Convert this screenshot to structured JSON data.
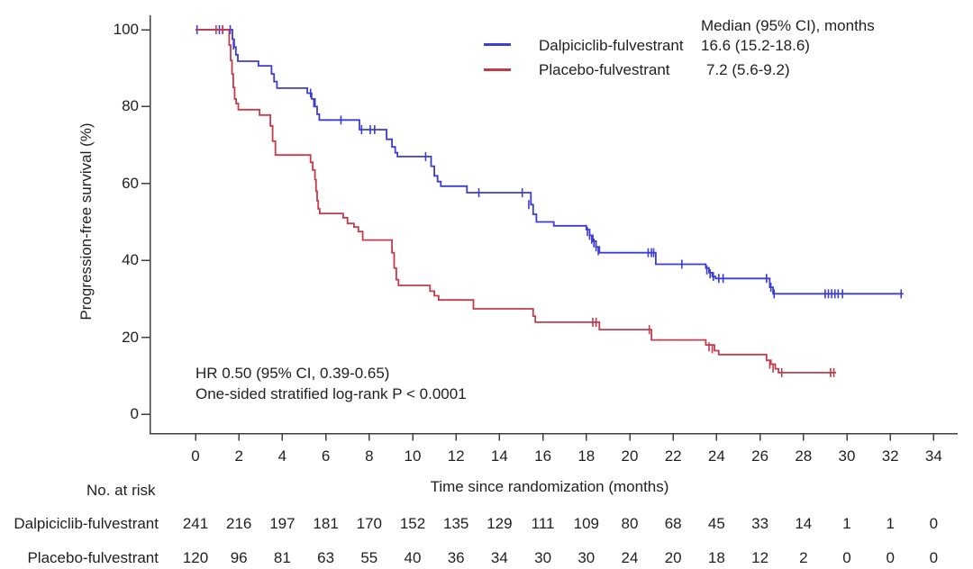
{
  "colors": {
    "background": "#ffffff",
    "axis": "#3f3f3f",
    "text": "#1f1f1f",
    "dalpiciclib": "#3c3cd2",
    "placebo": "#c43b4c"
  },
  "chart_data": {
    "type": "line",
    "subtype": "kaplan-meier-step-curves",
    "title": "",
    "xlabel": "Time since randomization (months)",
    "ylabel": "Progression-free survival (%)",
    "xlim": [
      0,
      34
    ],
    "ylim": [
      0,
      100
    ],
    "x_ticks": [
      0,
      2,
      4,
      6,
      8,
      10,
      12,
      14,
      16,
      18,
      20,
      22,
      24,
      26,
      28,
      30,
      32,
      34
    ],
    "y_ticks": [
      0,
      20,
      40,
      60,
      80,
      100
    ],
    "grid": false,
    "legend": {
      "position": "top-right",
      "header": "Median (95% CI), months",
      "entries": [
        {
          "label": "Dalpiciclib-fulvestrant",
          "median": "16.6 (15.2-18.6)",
          "color": "#3c3cd2"
        },
        {
          "label": "Placebo-fulvestrant",
          "median": "7.2 (5.6-9.2)",
          "color": "#c43b4c"
        }
      ]
    },
    "annotation": {
      "line1": "HR 0.50 (95% CI, 0.39-0.65)",
      "line2": "One-sided stratified log-rank P < 0.0001"
    },
    "series": [
      {
        "name": "Dalpiciclib-fulvestrant",
        "color": "#3c3cd2",
        "end": 32.6,
        "steps": [
          [
            0,
            100
          ],
          [
            1.7,
            97.5
          ],
          [
            1.78,
            95.5
          ],
          [
            1.86,
            93.5
          ],
          [
            1.95,
            91.8
          ],
          [
            2.9,
            90.6
          ],
          [
            3.5,
            88.5
          ],
          [
            3.62,
            86.5
          ],
          [
            3.75,
            84.8
          ],
          [
            5.15,
            83.5
          ],
          [
            5.35,
            82
          ],
          [
            5.5,
            80
          ],
          [
            5.6,
            78
          ],
          [
            5.7,
            76.5
          ],
          [
            7.55,
            74
          ],
          [
            8.8,
            71.5
          ],
          [
            9.05,
            69.5
          ],
          [
            9.2,
            68
          ],
          [
            9.3,
            67
          ],
          [
            10.85,
            64.5
          ],
          [
            11.0,
            62
          ],
          [
            11.15,
            60.5
          ],
          [
            11.3,
            59.3
          ],
          [
            12.5,
            57.6
          ],
          [
            15.45,
            54.5
          ],
          [
            15.55,
            52
          ],
          [
            15.7,
            50
          ],
          [
            16.5,
            49
          ],
          [
            18.0,
            48
          ],
          [
            18.15,
            46.5
          ],
          [
            18.3,
            45
          ],
          [
            18.45,
            43.5
          ],
          [
            18.6,
            42
          ],
          [
            21.2,
            39
          ],
          [
            23.5,
            38
          ],
          [
            23.65,
            36.8
          ],
          [
            23.8,
            35.8
          ],
          [
            23.95,
            35.3
          ],
          [
            26.45,
            33
          ],
          [
            26.6,
            31.3
          ]
        ],
        "censors": [
          [
            0.07,
            100
          ],
          [
            1.1,
            100
          ],
          [
            1.25,
            100
          ],
          [
            1.6,
            100
          ],
          [
            1.75,
            96
          ],
          [
            5.3,
            83.5
          ],
          [
            5.45,
            81
          ],
          [
            6.7,
            76.5
          ],
          [
            7.65,
            74
          ],
          [
            8.05,
            74
          ],
          [
            8.25,
            74
          ],
          [
            10.6,
            67
          ],
          [
            13.05,
            57.6
          ],
          [
            15.05,
            57.6
          ],
          [
            15.35,
            54.5
          ],
          [
            18.05,
            47.5
          ],
          [
            18.15,
            46.5
          ],
          [
            18.25,
            45.5
          ],
          [
            18.35,
            44.5
          ],
          [
            18.45,
            43.5
          ],
          [
            18.55,
            42.5
          ],
          [
            20.85,
            42
          ],
          [
            21.0,
            42
          ],
          [
            21.1,
            42
          ],
          [
            22.4,
            39
          ],
          [
            23.55,
            37.5
          ],
          [
            23.7,
            36.5
          ],
          [
            23.85,
            35.8
          ],
          [
            24.1,
            35.3
          ],
          [
            24.3,
            35.3
          ],
          [
            26.3,
            35.3
          ],
          [
            26.5,
            33
          ],
          [
            26.65,
            31.3
          ],
          [
            29.0,
            31.3
          ],
          [
            29.15,
            31.3
          ],
          [
            29.3,
            31.3
          ],
          [
            29.45,
            31.3
          ],
          [
            29.6,
            31.3
          ],
          [
            29.8,
            31.3
          ],
          [
            32.5,
            31.3
          ]
        ]
      },
      {
        "name": "Placebo-fulvestrant",
        "color": "#c43b4c",
        "end": 29.5,
        "steps": [
          [
            0,
            100
          ],
          [
            1.55,
            96
          ],
          [
            1.62,
            92
          ],
          [
            1.68,
            88.5
          ],
          [
            1.74,
            85
          ],
          [
            1.8,
            82
          ],
          [
            1.87,
            80.8
          ],
          [
            1.97,
            79.2
          ],
          [
            2.95,
            77.8
          ],
          [
            3.45,
            75
          ],
          [
            3.55,
            71
          ],
          [
            3.68,
            67.4
          ],
          [
            5.3,
            65.5
          ],
          [
            5.4,
            63.5
          ],
          [
            5.5,
            61
          ],
          [
            5.55,
            58
          ],
          [
            5.6,
            55.5
          ],
          [
            5.65,
            53.4
          ],
          [
            5.72,
            52.2
          ],
          [
            6.8,
            51.1
          ],
          [
            7.0,
            49.6
          ],
          [
            7.3,
            48.7
          ],
          [
            7.5,
            47.5
          ],
          [
            7.7,
            45.3
          ],
          [
            9.05,
            42
          ],
          [
            9.15,
            38
          ],
          [
            9.25,
            35
          ],
          [
            9.35,
            33.5
          ],
          [
            10.8,
            32
          ],
          [
            11.0,
            30.8
          ],
          [
            11.2,
            29.7
          ],
          [
            12.8,
            27.4
          ],
          [
            15.55,
            25.5
          ],
          [
            15.65,
            23.9
          ],
          [
            18.6,
            22
          ],
          [
            21.0,
            19.3
          ],
          [
            23.5,
            18
          ],
          [
            23.9,
            16.5
          ],
          [
            24.1,
            15.5
          ],
          [
            26.3,
            14
          ],
          [
            26.5,
            13
          ],
          [
            26.7,
            11.8
          ],
          [
            26.85,
            10.8
          ]
        ],
        "censors": [
          [
            0.95,
            100
          ],
          [
            1.25,
            100
          ],
          [
            18.3,
            23.9
          ],
          [
            18.45,
            23.9
          ],
          [
            20.9,
            22
          ],
          [
            23.65,
            17.5
          ],
          [
            23.8,
            17
          ],
          [
            26.45,
            13
          ],
          [
            26.6,
            12
          ],
          [
            27.0,
            10.8
          ],
          [
            29.25,
            10.8
          ],
          [
            29.4,
            10.8
          ]
        ]
      }
    ]
  },
  "at_risk": {
    "title": "No. at risk",
    "time_points": [
      0,
      2,
      4,
      6,
      8,
      10,
      12,
      14,
      16,
      18,
      20,
      22,
      24,
      26,
      28,
      30,
      32,
      34
    ],
    "rows": [
      {
        "label": "Dalpiciclib-fulvestrant",
        "values": [
          241,
          216,
          197,
          181,
          170,
          152,
          135,
          129,
          111,
          109,
          80,
          68,
          45,
          33,
          14,
          1,
          1,
          0
        ]
      },
      {
        "label": "Placebo-fulvestrant",
        "values": [
          120,
          96,
          81,
          63,
          55,
          40,
          36,
          34,
          30,
          30,
          24,
          20,
          18,
          12,
          2,
          0,
          0,
          0
        ]
      }
    ]
  }
}
